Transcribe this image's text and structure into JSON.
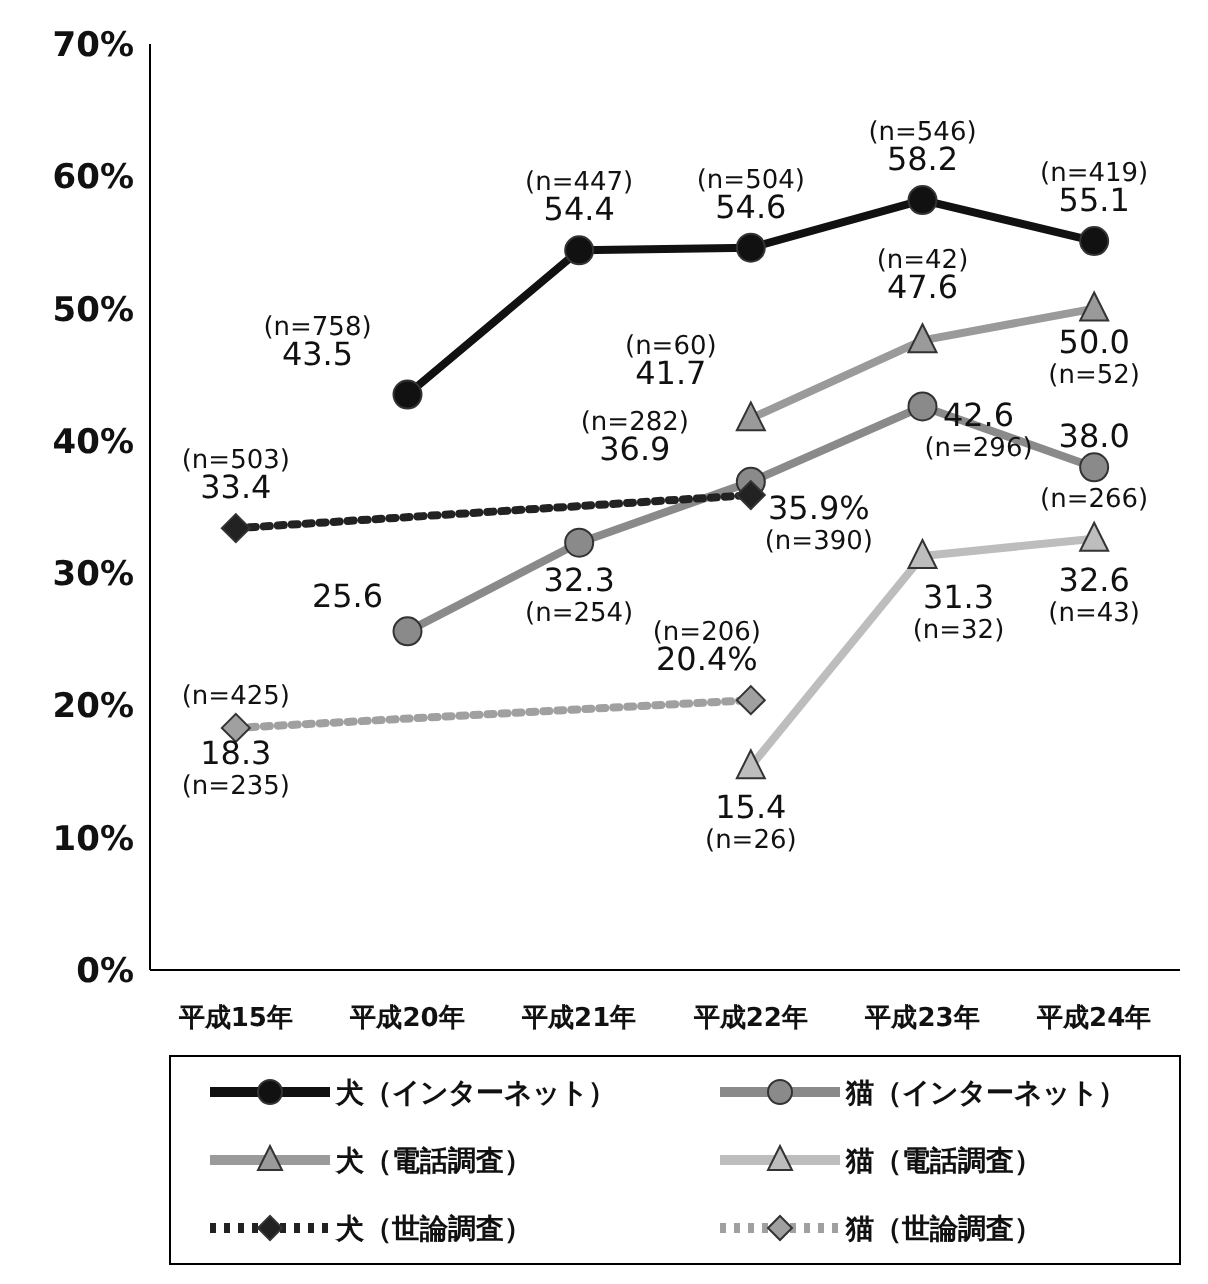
{
  "chart_data": {
    "type": "line",
    "categories": [
      "平成15年",
      "平成20年",
      "平成21年",
      "平成22年",
      "平成23年",
      "平成24年"
    ],
    "ylim": [
      0,
      70
    ],
    "yticks": [
      {
        "value": 0,
        "label": "0%"
      },
      {
        "value": 10,
        "label": "10%"
      },
      {
        "value": 20,
        "label": "20%"
      },
      {
        "value": 30,
        "label": "30%"
      },
      {
        "value": 40,
        "label": "40%"
      },
      {
        "value": 50,
        "label": "50%"
      },
      {
        "value": 60,
        "label": "60%"
      },
      {
        "value": 70,
        "label": "70%"
      }
    ],
    "grid": false,
    "legend": "bottom",
    "series": [
      {
        "name": "犬（インターネット）",
        "color": "#111111",
        "marker": "circle",
        "line_style": "solid",
        "values": [
          null,
          43.5,
          54.4,
          54.6,
          58.2,
          55.1
        ],
        "value_labels": [
          null,
          "(n=758)\n43.5",
          "(n=447)\n54.4",
          "(n=504)\n54.6",
          "(n=546)\n58.2",
          "(n=419)\n55.1"
        ]
      },
      {
        "name": "猫（インターネット）",
        "color": "#8a8a8a",
        "marker": "circle",
        "line_style": "solid",
        "values": [
          null,
          25.6,
          32.3,
          36.9,
          42.6,
          38.0
        ],
        "value_labels": [
          null,
          "25.6",
          "32.3\n(n=254)",
          "(n=282)\n36.9",
          "42.6\n(n=296)",
          "38.0\n\n(n=266)"
        ]
      },
      {
        "name": "犬（電話調査）",
        "color": "#9a9a9a",
        "marker": "triangle",
        "line_style": "solid",
        "values": [
          null,
          null,
          null,
          41.7,
          47.6,
          50.0
        ],
        "value_labels": [
          null,
          null,
          null,
          "(n=60)\n41.7",
          "(n=42)\n47.6",
          "50.0\n(n=52)"
        ]
      },
      {
        "name": "猫（電話調査）",
        "color": "#bdbdbd",
        "marker": "triangle",
        "line_style": "solid",
        "values": [
          null,
          null,
          null,
          15.4,
          31.3,
          32.6
        ],
        "value_labels": [
          null,
          null,
          null,
          "15.4\n(n=26)",
          "31.3\n(n=32)",
          "32.6\n(n=43)"
        ]
      },
      {
        "name": "犬（世論調査）",
        "color": "#222222",
        "marker": "diamond",
        "line_style": "dotted",
        "values": [
          33.4,
          null,
          null,
          35.9,
          null,
          null
        ],
        "value_labels": [
          "(n=503)\n33.4",
          null,
          null,
          "35.9%\n(n=390)",
          null,
          null
        ]
      },
      {
        "name": "猫（世論調査）",
        "color": "#a0a0a0",
        "marker": "diamond",
        "line_style": "dotted",
        "values": [
          18.3,
          null,
          null,
          20.4,
          null,
          null
        ],
        "value_labels": [
          "(n=425)\n\n18.3\n(n=235)",
          null,
          null,
          "(n=206)\n20.4%",
          null,
          null
        ]
      }
    ]
  }
}
